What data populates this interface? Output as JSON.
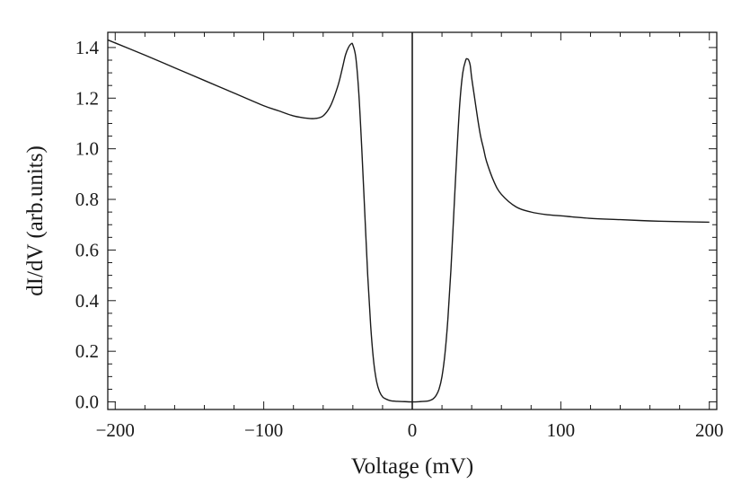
{
  "chart_data": {
    "type": "line",
    "xlabel": "Voltage (mV)",
    "ylabel": "dI/dV (arb.units)",
    "xlim": [
      -205,
      205
    ],
    "ylim": [
      -0.03,
      1.46
    ],
    "xticks": [
      {
        "value": -200,
        "label": "−200"
      },
      {
        "value": -100,
        "label": "−100"
      },
      {
        "value": 0,
        "label": "0"
      },
      {
        "value": 100,
        "label": "100"
      },
      {
        "value": 200,
        "label": "200"
      }
    ],
    "yticks": [
      {
        "value": 0.0,
        "label": "0.0"
      },
      {
        "value": 0.2,
        "label": "0.2"
      },
      {
        "value": 0.4,
        "label": "0.4"
      },
      {
        "value": 0.6,
        "label": "0.6"
      },
      {
        "value": 0.8,
        "label": "0.8"
      },
      {
        "value": 1.0,
        "label": "1.0"
      },
      {
        "value": 1.2,
        "label": "1.2"
      },
      {
        "value": 1.4,
        "label": "1.4"
      }
    ],
    "grid": false,
    "series": [
      {
        "color": "#1a1a1a",
        "x": [
          -205,
          -180,
          -160,
          -140,
          -120,
          -100,
          -90,
          -80,
          -70,
          -65,
          -60,
          -55,
          -50,
          -47,
          -45,
          -43,
          -41,
          -40,
          -38,
          -36,
          -34,
          -32,
          -30,
          -28,
          -26,
          -24,
          -22,
          -20,
          -18,
          -16,
          -14,
          -12,
          -10,
          -5,
          0,
          5,
          10,
          12,
          14,
          16,
          18,
          20,
          22,
          24,
          26,
          28,
          30,
          32,
          34,
          36,
          37,
          38,
          39,
          40,
          42,
          44,
          46,
          48,
          50,
          55,
          60,
          70,
          80,
          90,
          100,
          120,
          140,
          160,
          180,
          200
        ],
        "y": [
          1.43,
          1.37,
          1.32,
          1.27,
          1.22,
          1.17,
          1.15,
          1.13,
          1.12,
          1.12,
          1.13,
          1.17,
          1.25,
          1.32,
          1.37,
          1.4,
          1.415,
          1.41,
          1.36,
          1.22,
          1.0,
          0.75,
          0.5,
          0.3,
          0.16,
          0.08,
          0.04,
          0.02,
          0.012,
          0.007,
          0.004,
          0.003,
          0.002,
          0.001,
          0.0,
          0.001,
          0.003,
          0.006,
          0.012,
          0.025,
          0.05,
          0.1,
          0.19,
          0.33,
          0.52,
          0.75,
          0.98,
          1.18,
          1.3,
          1.35,
          1.355,
          1.35,
          1.33,
          1.28,
          1.2,
          1.12,
          1.05,
          1.0,
          0.95,
          0.87,
          0.82,
          0.77,
          0.75,
          0.74,
          0.735,
          0.725,
          0.72,
          0.715,
          0.712,
          0.71
        ]
      }
    ],
    "vertical_line_at_x": 0
  }
}
